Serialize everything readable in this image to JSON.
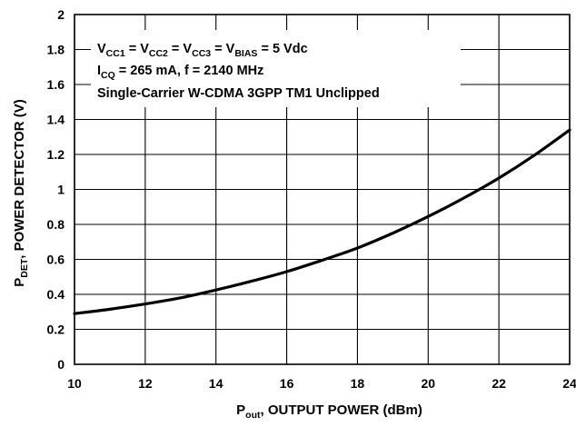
{
  "chart_data": {
    "type": "line",
    "title": "",
    "xlabel": {
      "main": "P",
      "sub": "out",
      "rest": ", OUTPUT POWER (dBm)"
    },
    "ylabel": {
      "main": "P",
      "sub": "DET",
      "rest": ", POWER DETECTOR (V)"
    },
    "xlim": [
      10,
      24
    ],
    "ylim": [
      0,
      2
    ],
    "xticks": [
      10,
      12,
      14,
      16,
      18,
      20,
      22,
      24
    ],
    "yticks": [
      0,
      0.2,
      0.4,
      0.6,
      0.8,
      1,
      1.2,
      1.4,
      1.6,
      1.8,
      2
    ],
    "xtick_labels": [
      "10",
      "12",
      "14",
      "16",
      "18",
      "20",
      "22",
      "24"
    ],
    "ytick_labels": [
      "0",
      "0.2",
      "0.4",
      "0.6",
      "0.8",
      "1",
      "1.2",
      "1.4",
      "1.6",
      "1.8",
      "2"
    ],
    "grid": true,
    "series": [
      {
        "x": [
          10,
          11,
          12,
          13,
          14,
          15,
          16,
          17,
          18,
          19,
          20,
          21,
          22,
          23,
          24
        ],
        "values": [
          0.29,
          0.315,
          0.345,
          0.38,
          0.425,
          0.475,
          0.53,
          0.595,
          0.665,
          0.75,
          0.845,
          0.95,
          1.065,
          1.195,
          1.34
        ],
        "color": "#000000"
      }
    ],
    "annotations": {
      "line1": [
        {
          "t": "V"
        },
        {
          "t": "CC1",
          "sub": true
        },
        {
          "t": " = V"
        },
        {
          "t": "CC2",
          "sub": true
        },
        {
          "t": " = V"
        },
        {
          "t": "CC3",
          "sub": true
        },
        {
          "t": " = V"
        },
        {
          "t": "BIAS",
          "sub": true
        },
        {
          "t": " = 5 Vdc"
        }
      ],
      "line2": [
        {
          "t": "I"
        },
        {
          "t": "CQ",
          "sub": true
        },
        {
          "t": " = 265 mA, f = 2140 MHz"
        }
      ],
      "line3": [
        {
          "t": "Single-Carrier W-CDMA 3GPP TM1 Unclipped"
        }
      ]
    }
  }
}
